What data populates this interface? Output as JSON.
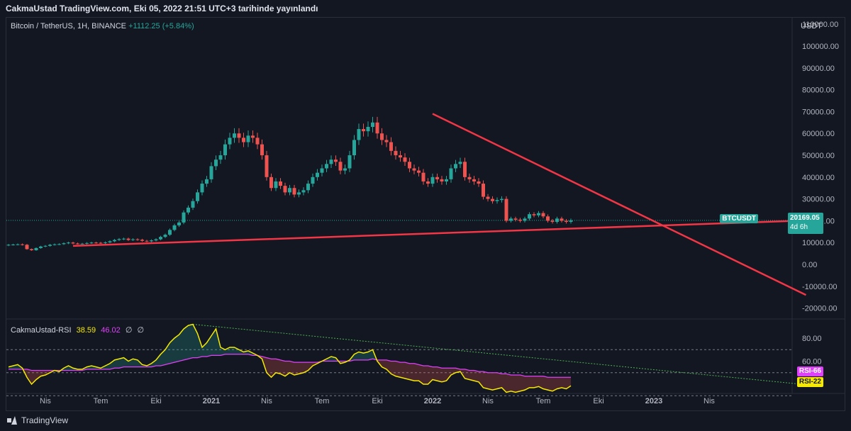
{
  "header": {
    "title": "CakmaUstad TradingView.com, Eki 05, 2022 21:51 UTC+3 tarihinde yayınlandı"
  },
  "main_legend": {
    "symbol": "Bitcoin / TetherUS, 1H, BINANCE",
    "change": "+1112.25 (+5.84%)"
  },
  "currency_label": "USDT",
  "last_price": {
    "symbol": "BTCUSDT",
    "price": "20169.05",
    "timer": "4d 6h"
  },
  "rsi_legend": {
    "name": "CakmaUstad-RSI",
    "value": "38.59",
    "ma_value": "46.02",
    "extra1": "∅",
    "extra2": "∅"
  },
  "rsi_tags": {
    "upper": "RSI-66",
    "lower": "RSI-22"
  },
  "footer": {
    "brand": "TradingView"
  },
  "colors": {
    "up": "#26a69a",
    "down": "#ef5350",
    "trendline": "#f23645",
    "rsi": "#f5e900",
    "rsi_ma": "#e040fb",
    "background": "#131722"
  },
  "chart_data": [
    {
      "type": "candlestick",
      "title": "Bitcoin / TetherUS, 1H, BINANCE",
      "x_ticks": [
        "Nis",
        "Tem",
        "Eki",
        "2021",
        "Nis",
        "Tem",
        "Eki",
        "2022",
        "Nis",
        "Tem",
        "Eki",
        "2023",
        "Nis"
      ],
      "x_tick_index": [
        8,
        20,
        32,
        44,
        56,
        68,
        80,
        92,
        104,
        116,
        128,
        140,
        152
      ],
      "y_ticks": [
        110000,
        100000,
        90000,
        80000,
        70000,
        60000,
        50000,
        40000,
        30000,
        20000,
        10000,
        0,
        -10000,
        -20000
      ],
      "y_tick_labels": [
        "110000.00",
        "100000.00",
        "90000.00",
        "80000.00",
        "70000.00",
        "60000.00",
        "50000.00",
        "40000.00",
        "30000.00",
        "20000.00",
        "10000.00",
        "0.00",
        "-10000.00",
        "-20000.00"
      ],
      "ylim": [
        -25000,
        113000
      ],
      "close_series": [
        9000,
        9100,
        9200,
        9000,
        7000,
        6500,
        7500,
        8200,
        8500,
        9000,
        9200,
        9300,
        9700,
        10000,
        9600,
        9500,
        9500,
        9800,
        10000,
        9900,
        9800,
        10100,
        10600,
        11200,
        11600,
        11800,
        11200,
        11500,
        11300,
        10800,
        10600,
        11000,
        11500,
        12600,
        13600,
        15800,
        17900,
        19200,
        23800,
        26000,
        29000,
        33000,
        37000,
        39000,
        45000,
        48000,
        50000,
        55000,
        58000,
        60000,
        58000,
        56000,
        59000,
        58000,
        55000,
        50000,
        40000,
        35000,
        38000,
        36000,
        33000,
        35000,
        32000,
        33000,
        34000,
        37000,
        40000,
        42000,
        44000,
        46000,
        48000,
        47000,
        43000,
        44000,
        50000,
        57000,
        62000,
        61000,
        63000,
        65000,
        60000,
        57000,
        56000,
        52000,
        50000,
        49000,
        47000,
        44000,
        43000,
        42000,
        38000,
        37000,
        40000,
        39000,
        38000,
        39000,
        44000,
        46000,
        47000,
        40000,
        39000,
        38000,
        37000,
        31000,
        30000,
        29000,
        29500,
        30000,
        20000,
        21000,
        20500,
        20000,
        21000,
        23000,
        22500,
        23500,
        22000,
        20000,
        19500,
        21000,
        20000,
        19500,
        20169
      ],
      "trendlines": [
        {
          "name": "descending",
          "from": {
            "index": 92,
            "value": 69000
          },
          "to": {
            "index": 173,
            "value": -14000
          }
        },
        {
          "name": "ascending",
          "from": {
            "index": 14,
            "value": 8500
          },
          "to": {
            "index": 174,
            "value": 20200
          }
        }
      ],
      "last_price_line": 20169.05
    },
    {
      "type": "line",
      "title": "CakmaUstad-RSI",
      "y_ticks": [
        80,
        60,
        40
      ],
      "y_tick_labels": [
        "80.00",
        "60.00",
        "40.00"
      ],
      "ylim": [
        32,
        96
      ],
      "bands": [
        70,
        50,
        30
      ],
      "series": [
        {
          "name": "RSI",
          "values": [
            55,
            56,
            57,
            54,
            46,
            40,
            44,
            47,
            48,
            50,
            52,
            51,
            54,
            56,
            54,
            53,
            53,
            55,
            56,
            55,
            54,
            56,
            58,
            61,
            62,
            63,
            60,
            62,
            61,
            57,
            56,
            58,
            61,
            66,
            70,
            76,
            80,
            83,
            88,
            91,
            92,
            84,
            72,
            76,
            82,
            88,
            72,
            70,
            72,
            72,
            70,
            68,
            69,
            67,
            65,
            62,
            50,
            46,
            50,
            49,
            47,
            50,
            48,
            49,
            50,
            52,
            56,
            58,
            60,
            62,
            64,
            63,
            58,
            59,
            61,
            66,
            68,
            67,
            68,
            70,
            60,
            55,
            53,
            49,
            47,
            46,
            45,
            44,
            43,
            43,
            40,
            40,
            44,
            43,
            42,
            43,
            48,
            50,
            51,
            45,
            44,
            43,
            42,
            37,
            36,
            35,
            36,
            37,
            33,
            34,
            33,
            34,
            35,
            37,
            37,
            38,
            36,
            35,
            34,
            36,
            37,
            36,
            38.59
          ]
        },
        {
          "name": "MA",
          "values": [
            53,
            53,
            53,
            53,
            53,
            52,
            52,
            52,
            52,
            52,
            52,
            52,
            52,
            52,
            52,
            52,
            52,
            53,
            53,
            53,
            53,
            53,
            53,
            54,
            54,
            55,
            55,
            55,
            55,
            55,
            55,
            55,
            56,
            56,
            57,
            58,
            59,
            60,
            61,
            62,
            63,
            63,
            64,
            64,
            65,
            65,
            65,
            66,
            66,
            66,
            66,
            66,
            66,
            65,
            65,
            64,
            63,
            62,
            62,
            61,
            60,
            60,
            59,
            59,
            59,
            59,
            59,
            59,
            60,
            60,
            60,
            60,
            60,
            60,
            60,
            61,
            61,
            61,
            61,
            62,
            61,
            61,
            61,
            60,
            60,
            59,
            59,
            58,
            58,
            57,
            56,
            56,
            55,
            55,
            54,
            54,
            54,
            54,
            53,
            53,
            52,
            52,
            51,
            51,
            50,
            50,
            50,
            49,
            49,
            48,
            48,
            48,
            47,
            47,
            47,
            47,
            47,
            46,
            46,
            46,
            46,
            46,
            46.02
          ]
        }
      ],
      "trendline": {
        "from": {
          "index": 40,
          "value": 92
        },
        "to": {
          "index": 172,
          "value": 40
        }
      }
    }
  ]
}
